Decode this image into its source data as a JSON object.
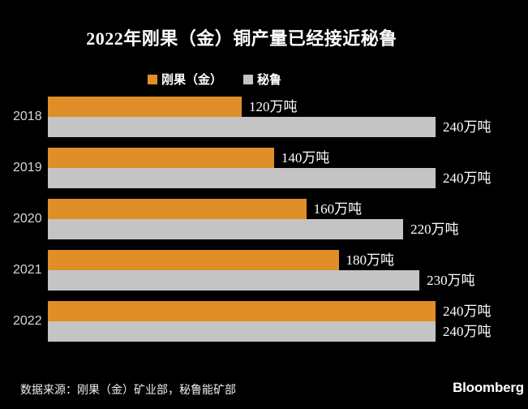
{
  "title": "2022年刚果（金）铜产量已经接近秘鲁",
  "legend": [
    {
      "key": "congo",
      "label": "刚果（金）",
      "color": "#E08E28"
    },
    {
      "key": "peru",
      "label": "秘鲁",
      "color": "#C4C4C4"
    }
  ],
  "chart_data": {
    "type": "bar",
    "orientation": "horizontal",
    "title": "2022年刚果（金）铜产量已经接近秘鲁",
    "categories": [
      "2018",
      "2019",
      "2020",
      "2021",
      "2022"
    ],
    "unit": "万吨",
    "series": [
      {
        "key": "congo",
        "name": "刚果（金）",
        "color": "#E08E28",
        "values": [
          120,
          140,
          160,
          180,
          240
        ],
        "labels": [
          "120万吨",
          "140万吨",
          "160万吨",
          "180万吨",
          "240万吨"
        ]
      },
      {
        "key": "peru",
        "name": "秘鲁",
        "color": "#C4C4C4",
        "values": [
          240,
          240,
          220,
          230,
          240
        ],
        "labels": [
          "240万吨",
          "240万吨",
          "220万吨",
          "230万吨",
          "240万吨"
        ]
      }
    ],
    "xlim": [
      0,
      240
    ],
    "grid": false,
    "legend_position": "top",
    "background": "#000000"
  },
  "footer": {
    "source": "数据来源：刚果（金）矿业部，秘鲁能矿部",
    "brand": "Bloomberg"
  },
  "colors": {
    "background": "#000000",
    "title_text": "#FFFFFF",
    "year_label": "#D6D6D6",
    "value_label": "#FFFFFF",
    "congo_bar": "#E08E28",
    "peru_bar": "#C4C4C4"
  }
}
